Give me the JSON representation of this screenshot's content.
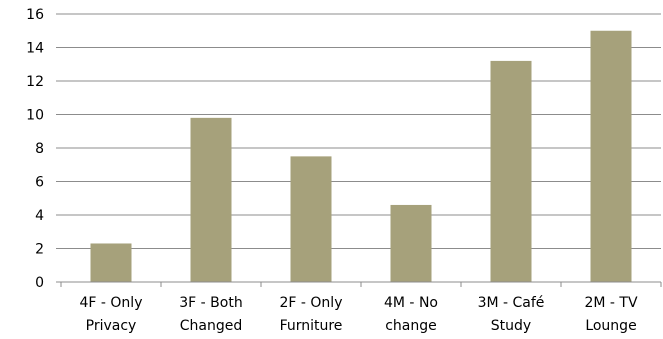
{
  "chart_data": {
    "type": "bar",
    "categories": [
      [
        "4F - Only",
        "Privacy"
      ],
      [
        "3F - Both",
        "Changed"
      ],
      [
        "2F - Only",
        "Furniture"
      ],
      [
        "4M - No",
        "change"
      ],
      [
        "3M - Café",
        "Study"
      ],
      [
        "2M - TV",
        "Lounge"
      ]
    ],
    "values": [
      2.3,
      9.8,
      7.5,
      4.6,
      13.2,
      15.0
    ],
    "yticks": [
      "0",
      "2",
      "4",
      "6",
      "8",
      "10",
      "12",
      "14",
      "16"
    ],
    "ylim": [
      0,
      16
    ],
    "grid": true,
    "legend": "none",
    "title": "",
    "xlabel": "",
    "ylabel": "",
    "colors": {
      "bar": "#a6a17b",
      "grid": "#8c8c8c",
      "axis": "#8c8c8c",
      "text": "#000000"
    }
  }
}
